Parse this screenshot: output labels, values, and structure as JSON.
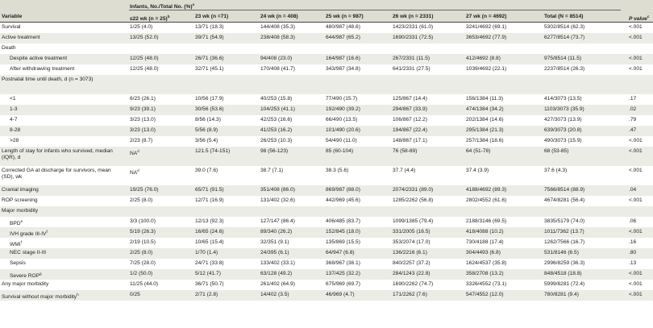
{
  "table": {
    "header": {
      "variable": "Variable",
      "group_title": "Infants, No./Total No. (%)",
      "group_title_sup": "a",
      "pvalue": "P value",
      "pvalue_sup": "c",
      "columns": [
        {
          "label": "≤22 wk (n = 25)",
          "sup": "b"
        },
        {
          "label": "23 wk (n =71)",
          "sup": ""
        },
        {
          "label": "24 wk (n = 408)",
          "sup": ""
        },
        {
          "label": "25 wk (n = 987)",
          "sup": ""
        },
        {
          "label": "26 wk (n = 2331)",
          "sup": ""
        },
        {
          "label": "27 wk (n = 4692)",
          "sup": ""
        },
        {
          "label": "Total (N = 8514)",
          "sup": ""
        }
      ]
    },
    "rows": [
      {
        "label": "Survival",
        "sup": "",
        "indent": false,
        "values": [
          "1/25 (4.0)",
          "13/71 (18.3)",
          "144/408 (35.3)",
          "480/987 (48.6)",
          "1423/2331 (61.0)",
          "3241/4692 (69.1)",
          "5302/8514 (62.3)",
          "<.001"
        ]
      },
      {
        "label": "Active treatment",
        "sup": "",
        "indent": false,
        "values": [
          "13/25 (52.0)",
          "39/71 (54.9)",
          "238/408 (58.3)",
          "644/987 (65.2)",
          "1690/2331 (72.5)",
          "3653/4692 (77.9)",
          "6277/8514 (73.7)",
          "<.001"
        ]
      },
      {
        "label": "Death",
        "sup": "",
        "indent": false,
        "values": [
          "",
          "",
          "",
          "",
          "",
          "",
          "",
          ""
        ]
      },
      {
        "label": "Despite active treatment",
        "sup": "",
        "indent": true,
        "values": [
          "12/25 (48.0)",
          "26/71 (36.6)",
          "94/408 (23.0)",
          "164/987 (16.6)",
          "267/2331 (11.5)",
          "412/4692 (8.8)",
          "975/8514 (11.5)",
          "<.001"
        ]
      },
      {
        "label": "After withdrawing treatment",
        "sup": "",
        "indent": true,
        "values": [
          "12/25 (48.0)",
          "32/71 (45.1)",
          "170/408 (41.7)",
          "343/987 (34.8)",
          "641/2331 (27.5)",
          "1039/4692 (22.1)",
          "2237/8514 (26.3)",
          "<.001"
        ]
      },
      {
        "label": "Postnatal time until death, d (n = 3073)",
        "sup": "",
        "indent": false,
        "wrap": true,
        "values": [
          "",
          "",
          "",
          "",
          "",
          "",
          "",
          ""
        ]
      },
      {
        "label": "<1",
        "sup": "",
        "indent": true,
        "values": [
          "6/23 (26.1)",
          "10/56 (17.9)",
          "40/253 (15.8)",
          "77/490 (15.7)",
          "125/867 (14.4)",
          "156/1384 (11.3)",
          "414/3073 (13.5)",
          ".17"
        ]
      },
      {
        "label": "1-3",
        "sup": "",
        "indent": true,
        "values": [
          "9/23 (39.1)",
          "30/56 (53.6)",
          "104/253 (41.1)",
          "192/490 (39.2)",
          "294/867 (33.9)",
          "474/1384 (34.2)",
          "1103/3073 (35.9)",
          ".02"
        ]
      },
      {
        "label": "4-7",
        "sup": "",
        "indent": true,
        "values": [
          "3/23 (13.0)",
          "8/56 (14.3)",
          "42/253 (16.6)",
          "66/490 (13.5)",
          "106/867 (12.2)",
          "202/1384 (14.6)",
          "427/3073 (13.9)",
          ".79"
        ]
      },
      {
        "label": "8-28",
        "sup": "",
        "indent": true,
        "values": [
          "3/23 (13.0)",
          "5/56 (8.9)",
          "41/253 (16.2)",
          "101/490 (20.6)",
          "194/867 (22.4)",
          "295/1384 (21.3)",
          "639/3073 (20.8)",
          ".47"
        ]
      },
      {
        "label": ">28",
        "sup": "",
        "indent": true,
        "values": [
          "2/23 (8.7)",
          "3/56 (5.4)",
          "26/253 (10.3)",
          "54/490 (11.0)",
          "148/867 (17.1)",
          "257/1384 (18.6)",
          "490/3073 (15.9)",
          "<.001"
        ]
      },
      {
        "label": "Length of stay for infants who survived, median (IQR), d",
        "sup": "",
        "indent": false,
        "wrap": true,
        "values": [
          "NA",
          "121.5 (74-151)",
          "98 (56-123)",
          "85 (60-104)",
          "76 (58-89)",
          "64 (51-78)",
          "68 (53-85)",
          "<.001"
        ],
        "first_sup": "d"
      },
      {
        "label": "Corrected GA at discharge for survivors, mean (SD), wk",
        "sup": "",
        "indent": false,
        "wrap": true,
        "values": [
          "NA",
          "39.0 (7.6)",
          "38.7 (7.1)",
          "38.3 (5.6)",
          "37.7 (4.4)",
          "37.4 (3.9)",
          "37.6 (4.3)",
          "<.001"
        ],
        "first_sup": "d"
      },
      {
        "label": "Cranial imaging",
        "sup": "",
        "indent": false,
        "values": [
          "19/25 (76.0)",
          "65/71 (91.5)",
          "351/408 (86.0)",
          "869/987 (88.0)",
          "2074/2331 (89.0)",
          "4188/4692 (89.3)",
          "7566/8514 (88.9)",
          ".04"
        ]
      },
      {
        "label": "ROP screening",
        "sup": "",
        "indent": false,
        "values": [
          "2/25 (8.0)",
          "12/71 (16.9)",
          "131/402 (32.6)",
          "442/969 (45.6)",
          "1285/2262 (56.8)",
          "2802/4552 (61.6)",
          "4674/8281 (56.4)",
          "<.001"
        ]
      },
      {
        "label": "Major morbidity",
        "sup": "",
        "indent": false,
        "values": [
          "",
          "",
          "",
          "",
          "",
          "",
          "",
          ""
        ]
      },
      {
        "label": "BPD",
        "sup": "e",
        "indent": true,
        "values": [
          "3/3 (100.0)",
          "12/13 (92.3)",
          "127/147 (86.4)",
          "406/485 (83.7)",
          "1099/1385 (79.4)",
          "2188/3146 (69.5)",
          "3835/5179 (74.0)",
          ".06"
        ]
      },
      {
        "label": "IVH grade III-IV",
        "sup": "f",
        "indent": true,
        "values": [
          "5/19 (26.3)",
          "16/65 (24.6)",
          "89/340 (26.2)",
          "152/845 (18.0)",
          "331/2005 (16.5)",
          "418/4088 (10.2)",
          "1011/7362 (13.7)",
          "<.001"
        ]
      },
      {
        "label": "WMI",
        "sup": "f",
        "indent": true,
        "values": [
          "2/19 (10.5)",
          "10/65 (15.4)",
          "32/351 (9.1)",
          "135/869 (15.5)",
          "353/2074 (17.0)",
          "730/4188 (17.4)",
          "1262/7566 (16.7)",
          ".16"
        ]
      },
      {
        "label": "NEC stage II-III",
        "sup": "",
        "indent": true,
        "values": [
          "2/25 (8.0)",
          "1/70 (1.4)",
          "24/395 (6.1)",
          "64/947 (6.8)",
          "136/2216 (6.1)",
          "304/4493 (6.8)",
          "531/8146 (6.5)",
          ".80"
        ]
      },
      {
        "label": "Sepsis",
        "sup": "",
        "indent": true,
        "values": [
          "7/25 (28.0)",
          "24/71 (33.8)",
          "133/402 (33.1)",
          "368/967 (38.1)",
          "840/2257 (37.2)",
          "1624/4537 (35.8)",
          "2996/8259 (36.3)",
          ".13"
        ]
      },
      {
        "label": "Severe ROP",
        "sup": "g",
        "indent": true,
        "values": [
          "1/2 (50.0)",
          "5/12 (41.7)",
          "63/128 (49.2)",
          "137/425 (32.2)",
          "284/1243 (22.8)",
          "358/2708 (13.2)",
          "848/4518 (18.8)",
          "<.001"
        ]
      },
      {
        "label": "Any major morbidity",
        "sup": "",
        "indent": false,
        "values": [
          "11/25 (44.0)",
          "36/71 (50.7)",
          "261/402 (64.9)",
          "675/969 (69.7)",
          "1690/2262 (74.7)",
          "3326/4552 (73.1)",
          "5999/8281 (72.4)",
          "<.001"
        ]
      },
      {
        "label": "Survival without major morbidity",
        "sup": "h",
        "indent": false,
        "values": [
          "0/25",
          "2/71 (2.8)",
          "14/402 (3.5)",
          "46/969 (4.7)",
          "171/2262 (7.6)",
          "547/4552 (12.0)",
          "780/8281 (9.4)",
          "<.001"
        ]
      }
    ]
  }
}
